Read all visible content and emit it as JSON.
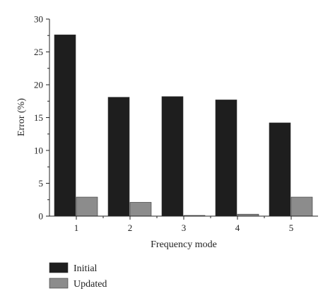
{
  "chart_data": {
    "type": "bar",
    "xlabel": "Frequency mode",
    "ylabel": "Error (%)",
    "ylim": [
      0,
      30
    ],
    "yticks": [
      0,
      5,
      10,
      15,
      20,
      25,
      30
    ],
    "categories": [
      "1",
      "2",
      "3",
      "4",
      "5"
    ],
    "series": [
      {
        "name": "Initial",
        "color": "#1e1e1e",
        "values": [
          27.6,
          18.1,
          18.2,
          17.7,
          14.2
        ]
      },
      {
        "name": "Updated",
        "color": "#8c8c8c",
        "values": [
          2.9,
          2.1,
          0.1,
          0.3,
          2.9
        ]
      }
    ],
    "legend_position": "bottom-left",
    "grid": false
  }
}
